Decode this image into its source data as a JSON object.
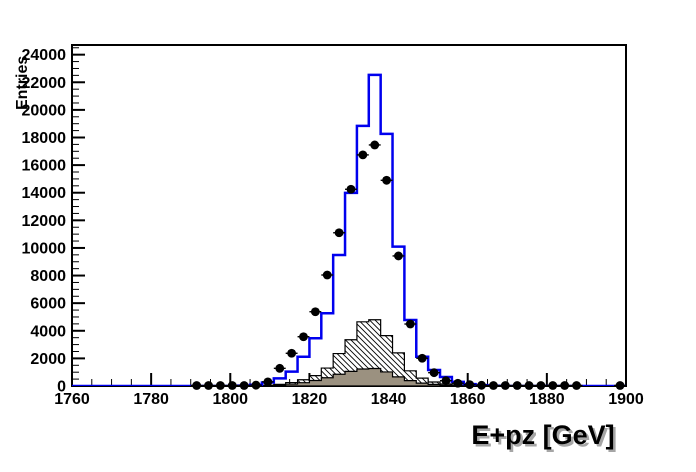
{
  "chart_data": {
    "type": "histogram",
    "title": "",
    "xlabel": "E+pz [GeV]",
    "ylabel": "Entries",
    "xlim": [
      1760,
      1900
    ],
    "ylim": [
      0,
      24700
    ],
    "x_tick_labels": [
      "1760",
      "1780",
      "1800",
      "1820",
      "1840",
      "1860",
      "1880",
      "1900"
    ],
    "x_major_step": 20,
    "x_minor_step": 5,
    "y_tick_labels": [
      "0",
      "2000",
      "4000",
      "6000",
      "8000",
      "10000",
      "12000",
      "14000",
      "16000",
      "18000",
      "20000",
      "22000",
      "24000"
    ],
    "y_major_step": 2000,
    "y_minor_step": 500,
    "grid": false,
    "legend": "none",
    "bin_width": 3,
    "series": [
      {
        "name": "mc-total-step-histogram",
        "style": "step-line",
        "color": "#0000ee",
        "line_width": 2.5,
        "bin_start": 1802,
        "bin_width": 3,
        "values": [
          30,
          90,
          250,
          550,
          1040,
          2120,
          3460,
          5270,
          9490,
          13990,
          18840,
          22540,
          18260,
          10100,
          4780,
          2120,
          1160,
          650,
          300,
          140,
          60,
          20
        ]
      },
      {
        "name": "hatched-background-histogram",
        "style": "filled-step",
        "fill": "diagonal-hatch",
        "outline_color": "#000000",
        "bin_start": 1808,
        "bin_width": 3,
        "values": [
          60,
          120,
          250,
          450,
          750,
          1300,
          2350,
          3350,
          4650,
          4800,
          3650,
          2400,
          1100,
          570,
          290,
          150,
          70,
          30
        ]
      },
      {
        "name": "gray-background-histogram",
        "style": "filled-step",
        "fill": "#9b9180",
        "outline_color": "#000000",
        "bin_start": 1805,
        "bin_width": 3,
        "values": [
          20,
          40,
          80,
          140,
          240,
          400,
          600,
          850,
          1060,
          1230,
          1270,
          1020,
          660,
          390,
          210,
          120,
          60,
          30,
          15
        ]
      },
      {
        "name": "data-points",
        "style": "scatter-markers",
        "marker": "filled-circle",
        "color": "#000000",
        "centers": [
          1791.5,
          1794.5,
          1797.5,
          1800.5,
          1803.5,
          1806.5,
          1809.5,
          1812.5,
          1815.5,
          1818.5,
          1821.5,
          1824.5,
          1827.5,
          1830.5,
          1833.5,
          1836.5,
          1839.5,
          1842.5,
          1845.5,
          1848.5,
          1851.5,
          1854.5,
          1857.5,
          1860.5,
          1863.5,
          1866.5,
          1869.5,
          1872.5,
          1875.5,
          1878.5,
          1881.5,
          1884.5,
          1887.5,
          1898.5
        ],
        "values": [
          0,
          0,
          0,
          0,
          30,
          60,
          300,
          1280,
          2370,
          3570,
          5380,
          8040,
          11100,
          14250,
          16740,
          17460,
          14900,
          9420,
          4490,
          2010,
          965,
          385,
          200,
          100,
          50,
          30,
          20,
          15,
          10,
          10,
          10,
          10,
          10,
          5
        ]
      }
    ]
  }
}
